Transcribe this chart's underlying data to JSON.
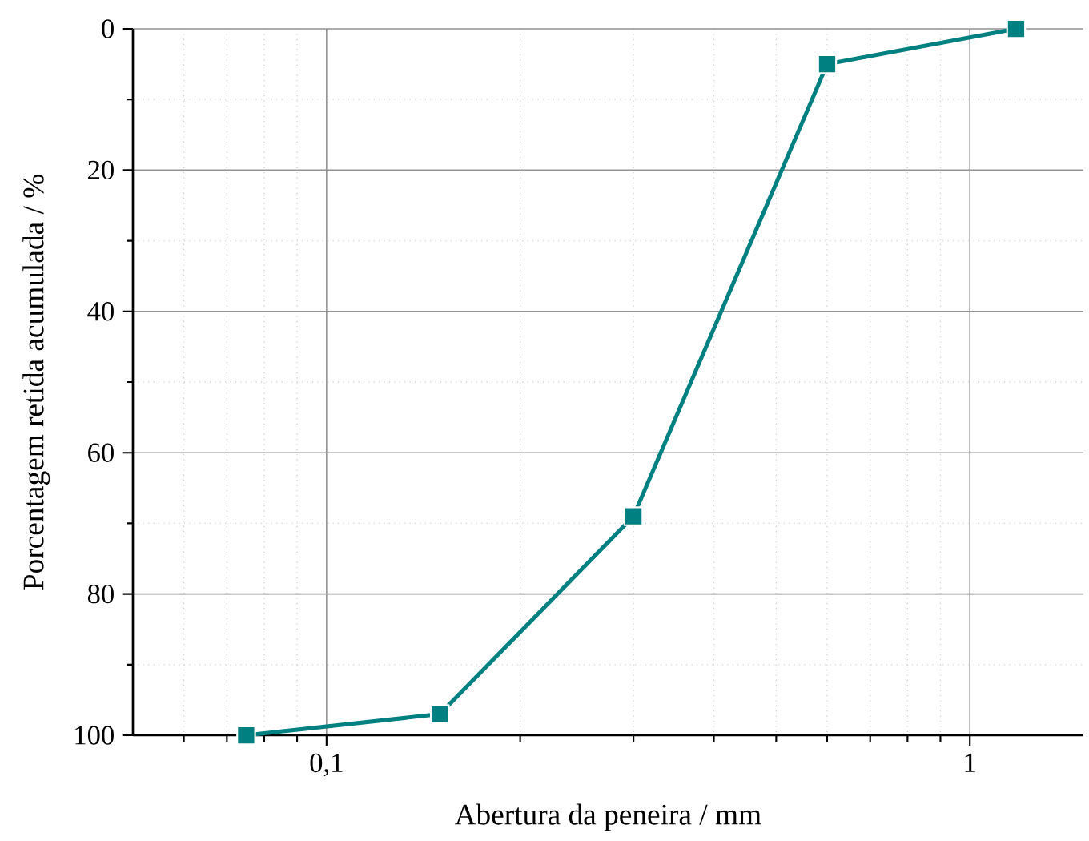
{
  "chart_data": {
    "type": "line",
    "xlabel": "Abertura da peneira / mm",
    "ylabel": "Porcentagem retida acumulada / %",
    "x": [
      0.075,
      0.15,
      0.3,
      0.6,
      1.18
    ],
    "series": [
      {
        "color": "#008080",
        "values": [
          100,
          97,
          69,
          5,
          0
        ]
      }
    ],
    "log": "x",
    "xlim": [
      0.05,
      1.5
    ],
    "ylim": [
      100,
      0
    ],
    "xticks": [
      {
        "value": 0.06,
        "label": null
      },
      {
        "value": 0.07,
        "label": null
      },
      {
        "value": 0.08,
        "label": null
      },
      {
        "value": 0.09,
        "label": null
      },
      {
        "value": 0.1,
        "label": "0,1"
      },
      {
        "value": 0.2,
        "label": null
      },
      {
        "value": 0.3,
        "label": null
      },
      {
        "value": 0.4,
        "label": null
      },
      {
        "value": 0.5,
        "label": null
      },
      {
        "value": 0.6,
        "label": null
      },
      {
        "value": 0.7,
        "label": null
      },
      {
        "value": 0.8,
        "label": null
      },
      {
        "value": 0.9,
        "label": null
      },
      {
        "value": 1,
        "label": "1"
      }
    ],
    "yticks": [
      0,
      {
        "value": 10,
        "label": null
      },
      20,
      {
        "value": 30,
        "label": null
      },
      40,
      {
        "value": 50,
        "label": null
      },
      60,
      {
        "value": 70,
        "label": null
      },
      80,
      {
        "value": 90,
        "label": null
      },
      100
    ],
    "grid": true,
    "marker": "square",
    "line_style": "solid"
  }
}
